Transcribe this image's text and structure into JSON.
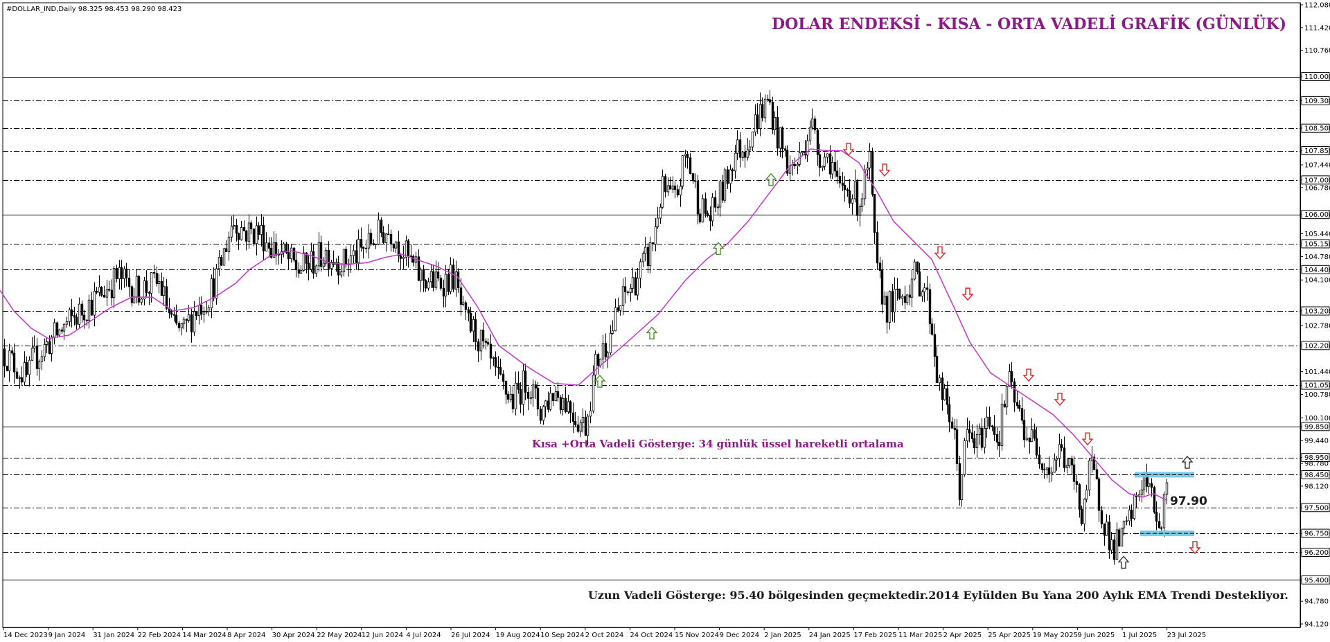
{
  "header": {
    "symbol_text": "#DOLLAR_IND,Daily  98.325 98.453 98.290 98.423"
  },
  "chart_data": {
    "type": "candlestick",
    "title": "DOLAR ENDEKSİ - KISA - ORTA VADELİ GRAFİK (GÜNLÜK)",
    "ylim": [
      94.12,
      112.08
    ],
    "price_ticks": [
      "112.080",
      "111.420",
      "110.760",
      "110.000",
      "109.300",
      "108.500",
      "107.850",
      "107.440",
      "107.000",
      "106.780",
      "106.000",
      "105.440",
      "105.150",
      "104.780",
      "104.400",
      "104.100",
      "103.200",
      "102.780",
      "102.200",
      "101.440",
      "101.050",
      "100.780",
      "100.100",
      "99.850",
      "99.440",
      "98.950",
      "98.780",
      "98.450",
      "98.120",
      "97.500",
      "96.750",
      "96.200",
      "95.400",
      "94.780",
      "94.120"
    ],
    "horizontal_levels": [
      {
        "price": 110.0,
        "style": "solid"
      },
      {
        "price": 109.3,
        "style": "dashdot"
      },
      {
        "price": 108.5,
        "style": "dashdot"
      },
      {
        "price": 107.85,
        "style": "dashdot"
      },
      {
        "price": 107.0,
        "style": "dashdot"
      },
      {
        "price": 106.0,
        "style": "solid"
      },
      {
        "price": 105.15,
        "style": "dashdot"
      },
      {
        "price": 104.4,
        "style": "dashdot"
      },
      {
        "price": 103.2,
        "style": "dashdot"
      },
      {
        "price": 102.2,
        "style": "dashdot"
      },
      {
        "price": 101.05,
        "style": "dashdot"
      },
      {
        "price": 99.85,
        "style": "solid"
      },
      {
        "price": 98.95,
        "style": "dashdot"
      },
      {
        "price": 98.45,
        "style": "dashdot"
      },
      {
        "price": 97.5,
        "style": "dashdot"
      },
      {
        "price": 96.75,
        "style": "dashdot"
      },
      {
        "price": 96.2,
        "style": "dashdot"
      },
      {
        "price": 95.4,
        "style": "solid"
      }
    ],
    "x_labels": [
      "14 Dec 2023",
      "9 Jan 2024",
      "31 Jan 2024",
      "22 Feb 2024",
      "14 Mar 2024",
      "8 Apr 2024",
      "30 Apr 2024",
      "22 May 2024",
      "12 Jun 2024",
      "4 Jul 2024",
      "26 Jul 2024",
      "19 Aug 2024",
      "10 Sep 2024",
      "2 Oct 2024",
      "24 Oct 2024",
      "15 Nov 2024",
      "9 Dec 2024",
      "2 Jan 2025",
      "24 Jan 2025",
      "17 Feb 2025",
      "11 Mar 2025",
      "2 Apr 2025",
      "25 Apr 2025",
      "19 May 2025",
      "9 Jun 2025",
      "1 Jul 2025",
      "23 Jul 2025"
    ],
    "price_path": [
      [
        0,
        102.1
      ],
      [
        40,
        101.2
      ],
      [
        45,
        101.7
      ],
      [
        75,
        102.4
      ],
      [
        95,
        102.8
      ],
      [
        140,
        103.6
      ],
      [
        170,
        104.2
      ],
      [
        195,
        103.8
      ],
      [
        230,
        104.0
      ],
      [
        250,
        102.7
      ],
      [
        265,
        102.6
      ],
      [
        280,
        103.2
      ],
      [
        300,
        103.6
      ],
      [
        315,
        104.3
      ],
      [
        335,
        105.8
      ],
      [
        355,
        105.5
      ],
      [
        375,
        105.5
      ],
      [
        390,
        105.1
      ],
      [
        410,
        104.8
      ],
      [
        430,
        104.4
      ],
      [
        450,
        104.6
      ],
      [
        470,
        104.9
      ],
      [
        495,
        104.6
      ],
      [
        520,
        104.9
      ],
      [
        550,
        105.5
      ],
      [
        565,
        105.5
      ],
      [
        580,
        105.0
      ],
      [
        605,
        104.2
      ],
      [
        630,
        104.0
      ],
      [
        655,
        104.2
      ],
      [
        670,
        102.9
      ],
      [
        685,
        102.6
      ],
      [
        700,
        102.0
      ],
      [
        720,
        101.1
      ],
      [
        740,
        100.6
      ],
      [
        760,
        101.2
      ],
      [
        780,
        100.3
      ],
      [
        800,
        100.9
      ],
      [
        820,
        100.5
      ],
      [
        835,
        100.0
      ],
      [
        845,
        99.9
      ],
      [
        860,
        101.7
      ],
      [
        880,
        102.5
      ],
      [
        900,
        103.6
      ],
      [
        920,
        104.2
      ],
      [
        940,
        105.0
      ],
      [
        955,
        106.7
      ],
      [
        975,
        106.4
      ],
      [
        990,
        107.8
      ],
      [
        1010,
        106.2
      ],
      [
        1025,
        105.9
      ],
      [
        1045,
        106.8
      ],
      [
        1060,
        107.8
      ],
      [
        1075,
        108.0
      ],
      [
        1095,
        108.9
      ],
      [
        1110,
        109.3
      ],
      [
        1120,
        108.4
      ],
      [
        1140,
        107.3
      ],
      [
        1155,
        107.6
      ],
      [
        1170,
        108.8
      ],
      [
        1180,
        107.8
      ],
      [
        1200,
        107.6
      ],
      [
        1210,
        106.6
      ],
      [
        1225,
        106.8
      ],
      [
        1240,
        106.3
      ],
      [
        1255,
        107.5
      ],
      [
        1265,
        104.3
      ],
      [
        1280,
        103.3
      ],
      [
        1300,
        103.6
      ],
      [
        1320,
        104.2
      ],
      [
        1335,
        103.9
      ],
      [
        1345,
        102.7
      ],
      [
        1355,
        101.0
      ],
      [
        1375,
        99.9
      ],
      [
        1385,
        98.0
      ],
      [
        1395,
        99.6
      ],
      [
        1410,
        99.3
      ],
      [
        1430,
        100.2
      ],
      [
        1440,
        99.4
      ],
      [
        1455,
        101.2
      ],
      [
        1465,
        100.5
      ],
      [
        1480,
        99.7
      ],
      [
        1495,
        99.3
      ],
      [
        1515,
        98.6
      ],
      [
        1530,
        99.2
      ],
      [
        1550,
        98.3
      ],
      [
        1560,
        97.3
      ],
      [
        1575,
        98.7
      ],
      [
        1590,
        97.4
      ],
      [
        1605,
        96.3
      ],
      [
        1620,
        96.6
      ],
      [
        1635,
        97.4
      ],
      [
        1650,
        98.4
      ],
      [
        1660,
        97.9
      ],
      [
        1675,
        96.9
      ],
      [
        1685,
        98.42
      ]
    ],
    "ema34_path": [
      [
        0,
        103.8
      ],
      [
        20,
        103.2
      ],
      [
        45,
        102.7
      ],
      [
        70,
        102.4
      ],
      [
        100,
        102.5
      ],
      [
        130,
        102.9
      ],
      [
        160,
        103.3
      ],
      [
        190,
        103.6
      ],
      [
        220,
        103.6
      ],
      [
        250,
        103.2
      ],
      [
        280,
        103.3
      ],
      [
        310,
        103.6
      ],
      [
        340,
        104.0
      ],
      [
        360,
        104.4
      ],
      [
        390,
        104.8
      ],
      [
        420,
        104.95
      ],
      [
        450,
        104.8
      ],
      [
        475,
        104.6
      ],
      [
        500,
        104.55
      ],
      [
        530,
        104.6
      ],
      [
        555,
        104.75
      ],
      [
        580,
        104.85
      ],
      [
        600,
        104.7
      ],
      [
        630,
        104.5
      ],
      [
        660,
        104.2
      ],
      [
        690,
        103.3
      ],
      [
        720,
        102.2
      ],
      [
        760,
        101.6
      ],
      [
        800,
        101.1
      ],
      [
        835,
        101.05
      ],
      [
        860,
        101.5
      ],
      [
        900,
        102.2
      ],
      [
        950,
        103.1
      ],
      [
        990,
        104.1
      ],
      [
        1020,
        104.7
      ],
      [
        1050,
        105.15
      ],
      [
        1080,
        105.8
      ],
      [
        1110,
        106.6
      ],
      [
        1140,
        107.4
      ],
      [
        1170,
        107.9
      ],
      [
        1195,
        107.85
      ],
      [
        1215,
        107.85
      ],
      [
        1240,
        107.5
      ],
      [
        1265,
        106.7
      ],
      [
        1290,
        105.8
      ],
      [
        1315,
        105.3
      ],
      [
        1345,
        104.7
      ],
      [
        1375,
        103.4
      ],
      [
        1400,
        102.3
      ],
      [
        1430,
        101.4
      ],
      [
        1460,
        101.0
      ],
      [
        1490,
        100.6
      ],
      [
        1520,
        100.2
      ],
      [
        1550,
        99.6
      ],
      [
        1580,
        98.9
      ],
      [
        1605,
        98.3
      ],
      [
        1630,
        97.9
      ],
      [
        1650,
        97.8
      ],
      [
        1665,
        97.9
      ],
      [
        1685,
        97.7
      ]
    ],
    "ema_color": "#c240c8",
    "arrows": [
      {
        "dir": "up",
        "color": "#4a8f2a",
        "x": 866,
        "price": 101.15
      },
      {
        "dir": "up",
        "color": "#4a8f2a",
        "x": 941,
        "price": 102.55
      },
      {
        "dir": "up",
        "color": "#4a8f2a",
        "x": 1037,
        "price": 105.0
      },
      {
        "dir": "up",
        "color": "#4a8f2a",
        "x": 1113,
        "price": 107.0
      },
      {
        "dir": "down",
        "color": "#e02020",
        "x": 1225,
        "price": 107.9
      },
      {
        "dir": "down",
        "color": "#e02020",
        "x": 1277,
        "price": 107.3
      },
      {
        "dir": "down",
        "color": "#e02020",
        "x": 1357,
        "price": 104.9
      },
      {
        "dir": "down",
        "color": "#e02020",
        "x": 1397,
        "price": 103.7
      },
      {
        "dir": "down",
        "color": "#e02020",
        "x": 1485,
        "price": 101.35
      },
      {
        "dir": "down",
        "color": "#e02020",
        "x": 1530,
        "price": 100.65
      },
      {
        "dir": "down",
        "color": "#e02020",
        "x": 1570,
        "price": 99.5
      },
      {
        "dir": "up",
        "color": "#333333",
        "x": 1714,
        "price": 98.8
      },
      {
        "dir": "down",
        "color": "#e02020",
        "x": 1725,
        "price": 96.35
      },
      {
        "dir": "up",
        "color": "#333333",
        "x": 1622,
        "price": 95.9
      }
    ],
    "range_box": {
      "top": 98.45,
      "bottom": 96.75,
      "color": "#6ec6e6"
    },
    "value_label": "97.90",
    "annotations": {
      "short_mid": "Kısa +Orta Vadeli Gösterge: 34 günlük üssel hareketli ortalama",
      "long": "Uzun Vadeli Gösterge: 95.40 bölgesinden geçmektedir.2014 Eylülden Bu Yana 200 Aylık EMA Trendi Destekliyor."
    }
  }
}
